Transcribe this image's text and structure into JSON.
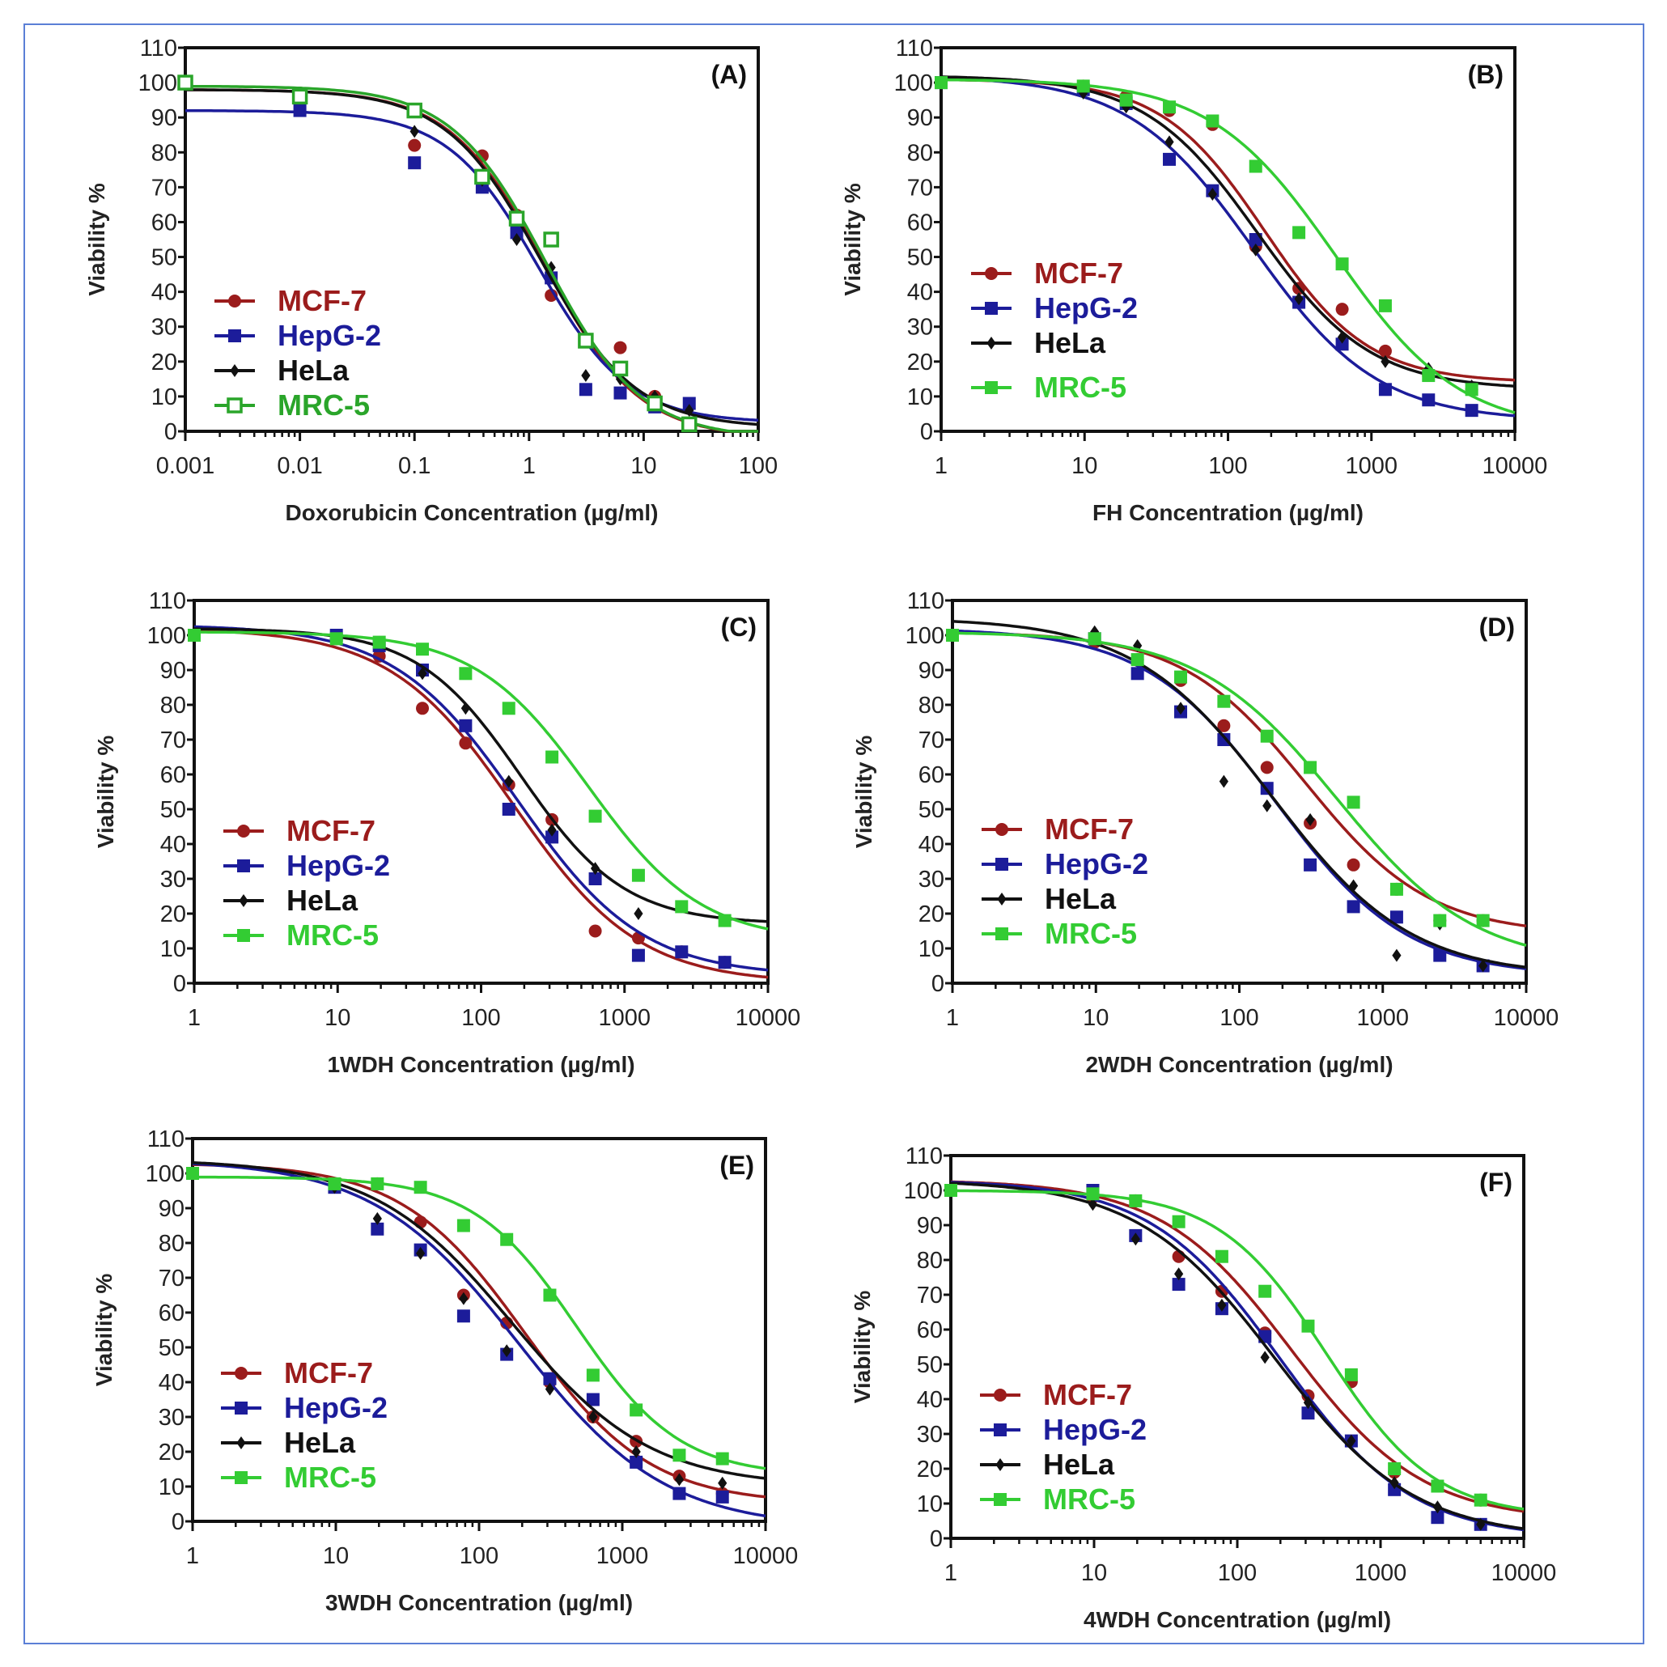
{
  "chart_data": [
    {
      "id": "A",
      "type": "line",
      "panel_label": "(A)",
      "xlabel": "Doxorubicin Concentration (µg/ml)",
      "ylabel": "Viability %",
      "xscale": "log",
      "xlim": [
        0.001,
        100
      ],
      "ylim": [
        0,
        110
      ],
      "xticks": [
        "0.001",
        "0.01",
        "0.1",
        "1",
        "10",
        "100"
      ],
      "xtick_values": [
        0.001,
        0.01,
        0.1,
        1,
        10,
        100
      ],
      "yticks": [
        0,
        10,
        20,
        30,
        40,
        50,
        60,
        70,
        80,
        90,
        100,
        110
      ],
      "legend_position": "bottom-left",
      "mrc5_open_marker": true,
      "x": [
        0.001,
        0.01,
        0.1,
        0.39,
        0.78,
        1.56,
        3.125,
        6.25,
        12.5,
        25
      ],
      "series": [
        {
          "name": "MCF-7",
          "color": "#9b1c1c",
          "marker": "circle",
          "values": [
            100,
            97,
            82,
            79,
            62,
            39,
            26,
            24,
            10,
            2
          ],
          "fit": {
            "top": 98,
            "bottom": -2,
            "ic50": 1.35,
            "hill": 1.05
          }
        },
        {
          "name": "HepG-2",
          "color": "#1c1c9a",
          "marker": "square",
          "values": [
            100,
            92,
            77,
            70,
            57,
            44,
            12,
            11,
            7,
            8
          ],
          "fit": {
            "top": 92,
            "bottom": 2.5,
            "ic50": 1.2,
            "hill": 1.1
          }
        },
        {
          "name": "HeLa",
          "color": "#111111",
          "marker": "diamond",
          "values": [
            100,
            96,
            86,
            72,
            55,
            47,
            16,
            15,
            10,
            6
          ],
          "fit": {
            "top": 98,
            "bottom": 1,
            "ic50": 1.25,
            "hill": 1.05
          }
        },
        {
          "name": "MRC-5",
          "color": "#2aa52a",
          "marker": "square",
          "values": [
            100,
            96,
            92,
            73,
            61,
            55,
            26,
            18,
            8,
            2
          ],
          "fit": {
            "top": 99,
            "bottom": -2,
            "ic50": 1.4,
            "hill": 1.05
          }
        }
      ]
    },
    {
      "id": "B",
      "type": "line",
      "panel_label": "(B)",
      "xlabel": "FH Concentration (µg/ml)",
      "ylabel": "Viability %",
      "xscale": "log",
      "xlim": [
        1,
        10000
      ],
      "ylim": [
        0,
        110
      ],
      "xticks": [
        "1",
        "10",
        "100",
        "1000",
        "10000"
      ],
      "xtick_values": [
        1,
        10,
        100,
        1000,
        10000
      ],
      "yticks": [
        0,
        10,
        20,
        30,
        40,
        50,
        60,
        70,
        80,
        90,
        100,
        110
      ],
      "legend_position": "center-left",
      "x": [
        1,
        9.8,
        19.5,
        39,
        78,
        156,
        312,
        625,
        1250,
        2500,
        5000
      ],
      "series": [
        {
          "name": "MCF-7",
          "color": "#9b1c1c",
          "marker": "circle",
          "values": [
            100,
            99,
            96,
            92,
            88,
            53,
            41,
            35,
            23,
            16,
            12
          ],
          "fit": {
            "top": 101,
            "bottom": 14,
            "ic50": 180,
            "hill": 1.2
          }
        },
        {
          "name": "HepG-2",
          "color": "#1c1c9a",
          "marker": "square",
          "values": [
            100,
            98,
            94,
            78,
            69,
            55,
            37,
            25,
            12,
            9,
            6
          ],
          "fit": {
            "top": 102,
            "bottom": 3,
            "ic50": 150,
            "hill": 1.0
          }
        },
        {
          "name": "HeLa",
          "color": "#111111",
          "marker": "diamond",
          "values": [
            100,
            97,
            93,
            83,
            68,
            52,
            38,
            27,
            20,
            18,
            13
          ],
          "fit": {
            "top": 102,
            "bottom": 12,
            "ic50": 160,
            "hill": 1.1
          }
        },
        {
          "name": "MRC-5",
          "color": "#33cc33",
          "marker": "square",
          "values": [
            100,
            99,
            95,
            93,
            89,
            76,
            57,
            48,
            36,
            16,
            12
          ],
          "fit": {
            "top": 101,
            "bottom": 0,
            "ic50": 560,
            "hill": 1.0
          }
        }
      ]
    },
    {
      "id": "C",
      "type": "line",
      "panel_label": "(C)",
      "xlabel": "1WDH Concentration (µg/ml)",
      "ylabel": "Viability %",
      "xscale": "log",
      "xlim": [
        1,
        10000
      ],
      "ylim": [
        0,
        110
      ],
      "xticks": [
        "1",
        "10",
        "100",
        "1000",
        "10000"
      ],
      "xtick_values": [
        1,
        10,
        100,
        1000,
        10000
      ],
      "yticks": [
        0,
        10,
        20,
        30,
        40,
        50,
        60,
        70,
        80,
        90,
        100,
        110
      ],
      "legend_position": "bottom-left",
      "x": [
        1,
        9.8,
        19.5,
        39,
        78,
        156,
        312,
        625,
        1250,
        2500,
        5000
      ],
      "series": [
        {
          "name": "MCF-7",
          "color": "#9b1c1c",
          "marker": "circle",
          "values": [
            100,
            99,
            94,
            79,
            69,
            57,
            47,
            15,
            13,
            9,
            6
          ],
          "fit": {
            "top": 102,
            "bottom": 0,
            "ic50": 170,
            "hill": 1.0
          }
        },
        {
          "name": "HepG-2",
          "color": "#1c1c9a",
          "marker": "square",
          "values": [
            100,
            100,
            97,
            90,
            74,
            50,
            42,
            30,
            8,
            9,
            6
          ],
          "fit": {
            "top": 103,
            "bottom": 2,
            "ic50": 180,
            "hill": 1.0
          }
        },
        {
          "name": "HeLa",
          "color": "#111111",
          "marker": "diamond",
          "values": [
            100,
            99,
            98,
            89,
            79,
            58,
            44,
            33,
            20,
            22,
            18
          ],
          "fit": {
            "top": 102,
            "bottom": 17,
            "ic50": 190,
            "hill": 1.2
          }
        },
        {
          "name": "MRC-5",
          "color": "#33cc33",
          "marker": "square",
          "values": [
            100,
            99,
            98,
            96,
            89,
            79,
            65,
            48,
            31,
            22,
            18
          ],
          "fit": {
            "top": 101,
            "bottom": 12,
            "ic50": 560,
            "hill": 1.1
          }
        }
      ]
    },
    {
      "id": "D",
      "type": "line",
      "panel_label": "(D)",
      "xlabel": "2WDH Concentration (µg/ml)",
      "ylabel": "Viability %",
      "xscale": "log",
      "xlim": [
        1,
        10000
      ],
      "ylim": [
        0,
        110
      ],
      "xticks": [
        "1",
        "10",
        "100",
        "1000",
        "10000"
      ],
      "xtick_values": [
        1,
        10,
        100,
        1000,
        10000
      ],
      "yticks": [
        0,
        10,
        20,
        30,
        40,
        50,
        60,
        70,
        80,
        90,
        100,
        110
      ],
      "legend_position": "bottom-left",
      "x": [
        1,
        9.8,
        19.5,
        39,
        78,
        156,
        312,
        625,
        1250,
        2500,
        5000
      ],
      "series": [
        {
          "name": "MCF-7",
          "color": "#9b1c1c",
          "marker": "circle",
          "values": [
            100,
            98,
            93,
            87,
            74,
            62,
            46,
            34,
            27,
            18,
            18
          ],
          "fit": {
            "top": 101,
            "bottom": 14,
            "ic50": 290,
            "hill": 1.0
          }
        },
        {
          "name": "HepG-2",
          "color": "#1c1c9a",
          "marker": "square",
          "values": [
            100,
            99,
            89,
            78,
            70,
            56,
            34,
            22,
            19,
            8,
            5
          ],
          "fit": {
            "top": 102,
            "bottom": 2,
            "ic50": 180,
            "hill": 0.95
          }
        },
        {
          "name": "HeLa",
          "color": "#111111",
          "marker": "diamond",
          "values": [
            100,
            101,
            97,
            79,
            58,
            51,
            47,
            28,
            8,
            17,
            5
          ],
          "fit": {
            "top": 105,
            "bottom": 2,
            "ic50": 170,
            "hill": 0.9
          }
        },
        {
          "name": "MRC-5",
          "color": "#33cc33",
          "marker": "square",
          "values": [
            100,
            99,
            93,
            88,
            81,
            71,
            62,
            52,
            27,
            18,
            18
          ],
          "fit": {
            "top": 101,
            "bottom": 5,
            "ic50": 480,
            "hill": 0.9
          }
        }
      ]
    },
    {
      "id": "E",
      "type": "line",
      "panel_label": "(E)",
      "xlabel": "3WDH Concentration (µg/ml)",
      "ylabel": "Viability %",
      "xscale": "log",
      "xlim": [
        1,
        10000
      ],
      "ylim": [
        0,
        110
      ],
      "xticks": [
        "1",
        "10",
        "100",
        "1000",
        "10000"
      ],
      "xtick_values": [
        1,
        10,
        100,
        1000,
        10000
      ],
      "yticks": [
        0,
        10,
        20,
        30,
        40,
        50,
        60,
        70,
        80,
        90,
        100,
        110
      ],
      "legend_position": "bottom-left",
      "x": [
        1,
        9.8,
        19.5,
        39,
        78,
        156,
        312,
        625,
        1250,
        2500,
        5000
      ],
      "series": [
        {
          "name": "MCF-7",
          "color": "#9b1c1c",
          "marker": "circle",
          "values": [
            100,
            97,
            97,
            86,
            65,
            57,
            40,
            30,
            23,
            13,
            8
          ],
          "fit": {
            "top": 103,
            "bottom": 5,
            "ic50": 210,
            "hill": 1.0
          }
        },
        {
          "name": "HepG-2",
          "color": "#1c1c9a",
          "marker": "square",
          "values": [
            100,
            96,
            84,
            78,
            59,
            48,
            41,
            35,
            17,
            8,
            7
          ],
          "fit": {
            "top": 104,
            "bottom": -2,
            "ic50": 190,
            "hill": 0.85
          }
        },
        {
          "name": "HeLa",
          "color": "#111111",
          "marker": "diamond",
          "values": [
            100,
            96,
            87,
            77,
            64,
            49,
            38,
            30,
            20,
            12,
            11
          ],
          "fit": {
            "top": 104,
            "bottom": 10,
            "ic50": 170,
            "hill": 0.9
          }
        },
        {
          "name": "MRC-5",
          "color": "#33cc33",
          "marker": "square",
          "values": [
            100,
            97,
            97,
            96,
            85,
            81,
            65,
            42,
            32,
            19,
            18
          ],
          "fit": {
            "top": 99,
            "bottom": 13,
            "ic50": 480,
            "hill": 1.2
          }
        }
      ]
    },
    {
      "id": "F",
      "type": "line",
      "panel_label": "(F)",
      "xlabel": "4WDH Concentration (µg/ml)",
      "ylabel": "Viability %",
      "xscale": "log",
      "xlim": [
        1,
        10000
      ],
      "ylim": [
        0,
        110
      ],
      "xticks": [
        "1",
        "10",
        "100",
        "1000",
        "10000"
      ],
      "xtick_values": [
        1,
        10,
        100,
        1000,
        10000
      ],
      "yticks": [
        0,
        10,
        20,
        30,
        40,
        50,
        60,
        70,
        80,
        90,
        100,
        110
      ],
      "legend_position": "bottom-left",
      "x": [
        1,
        9.8,
        19.5,
        39,
        78,
        156,
        312,
        625,
        1250,
        2500,
        5000
      ],
      "series": [
        {
          "name": "MCF-7",
          "color": "#9b1c1c",
          "marker": "circle",
          "values": [
            100,
            98,
            97,
            81,
            71,
            59,
            41,
            45,
            19,
            15,
            11
          ],
          "fit": {
            "top": 103,
            "bottom": 5,
            "ic50": 240,
            "hill": 0.95
          }
        },
        {
          "name": "HepG-2",
          "color": "#1c1c9a",
          "marker": "square",
          "values": [
            100,
            100,
            87,
            73,
            66,
            58,
            36,
            28,
            14,
            6,
            4
          ],
          "fit": {
            "top": 103,
            "bottom": 0,
            "ic50": 200,
            "hill": 0.95
          }
        },
        {
          "name": "HeLa",
          "color": "#111111",
          "marker": "diamond",
          "values": [
            100,
            96,
            86,
            76,
            67,
            52,
            39,
            28,
            16,
            9,
            4
          ],
          "fit": {
            "top": 103,
            "bottom": 0,
            "ic50": 185,
            "hill": 0.9
          }
        },
        {
          "name": "MRC-5",
          "color": "#33cc33",
          "marker": "square",
          "values": [
            100,
            99,
            97,
            91,
            81,
            71,
            61,
            47,
            20,
            15,
            11
          ],
          "fit": {
            "top": 100,
            "bottom": 6,
            "ic50": 420,
            "hill": 1.15
          }
        }
      ]
    }
  ]
}
